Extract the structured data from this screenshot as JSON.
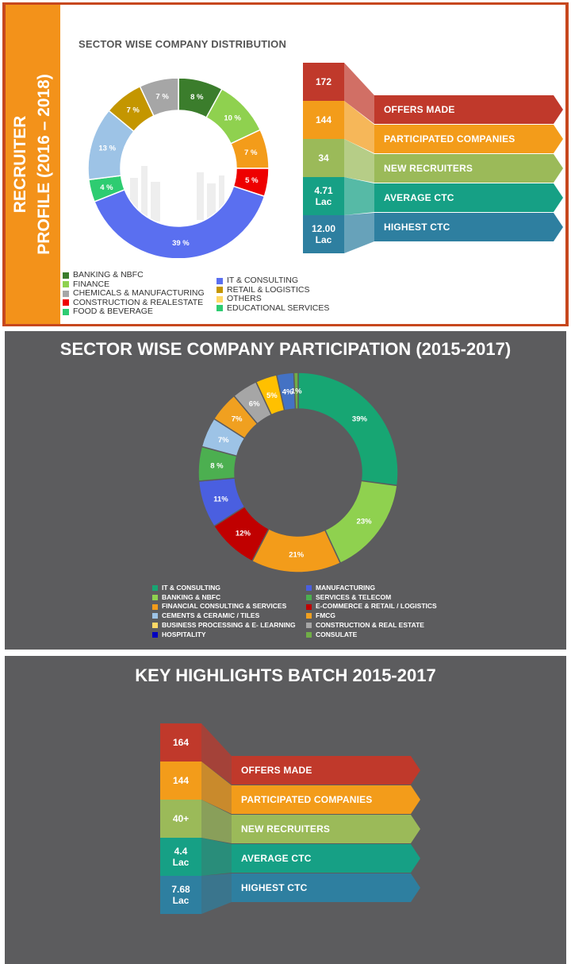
{
  "panel1": {
    "sidebar_line1": "RECRUITER",
    "sidebar_line2": "PROFILE (2016 – 2018)",
    "title": "SECTOR WISE COMPANY DISTRIBUTION",
    "stats": [
      {
        "value": "172",
        "label": "OFFERS MADE",
        "color": "#c0392b"
      },
      {
        "value": "144",
        "label": "PARTICIPATED COMPANIES",
        "color": "#f39c1a"
      },
      {
        "value": "34",
        "label": "NEW RECRUITERS",
        "color": "#9bba59"
      },
      {
        "value": "4.71 Lac",
        "label": "AVERAGE CTC",
        "color": "#16a085"
      },
      {
        "value": "12.00 Lac",
        "label": "HIGHEST CTC",
        "color": "#2e7fa0"
      }
    ]
  },
  "panel2": {
    "title": "SECTOR WISE COMPANY PARTICIPATION  (2015-2017)"
  },
  "panel3": {
    "title": "KEY HIGHLIGHTS  BATCH 2015-2017",
    "stats": [
      {
        "value": "164",
        "label": "OFFERS MADE",
        "color": "#c0392b"
      },
      {
        "value": "144",
        "label": "PARTICIPATED COMPANIES",
        "color": "#f39c1a"
      },
      {
        "value": "40+",
        "label": "NEW RECRUITERS",
        "color": "#9bba59"
      },
      {
        "value": "4.4 Lac",
        "label": "AVERAGE CTC",
        "color": "#16a085"
      },
      {
        "value": "7.68 Lac",
        "label": "HIGHEST CTC",
        "color": "#2e7fa0"
      }
    ]
  },
  "chart_data": [
    {
      "type": "pie",
      "title": "SECTOR WISE COMPANY DISTRIBUTION",
      "donut": true,
      "slices": [
        {
          "name": "BANKING & NBFC",
          "value": 8,
          "label": "8 %",
          "color": "#3b7d2c"
        },
        {
          "name": "FINANCE",
          "value": 10,
          "label": "10 %",
          "color": "#8fd14f"
        },
        {
          "name": "OTHERS",
          "value": 7,
          "label": "7 %",
          "color": "#f39c1a"
        },
        {
          "name": "CONSTRUCTION & REALESTATE",
          "value": 5,
          "label": "5 %",
          "color": "#ee0000"
        },
        {
          "name": "IT & CONSULTING",
          "value": 39,
          "label": "39 %",
          "color": "#5a6ff0"
        },
        {
          "name": "EDUCATIONAL SERVICES",
          "value": 4,
          "label": "4 %",
          "color": "#2ecc71"
        },
        {
          "name": "FOOD & BEVERAGE",
          "value": 13,
          "label": "13 %",
          "color": "#9dc3e6"
        },
        {
          "name": "RETAIL & LOGISTICS",
          "value": 7,
          "label": "7 %",
          "color": "#c49600"
        },
        {
          "name": "CHEMICALS & MANUFACTURING",
          "value": 7,
          "label": "7 %",
          "color": "#a6a6a6"
        }
      ],
      "legend_left": [
        {
          "name": "BANKING & NBFC",
          "color": "#3b7d2c"
        },
        {
          "name": "FINANCE",
          "color": "#8fd14f"
        },
        {
          "name": "CHEMICALS & MANUFACTURING",
          "color": "#a6a6a6"
        },
        {
          "name": "CONSTRUCTION & REALESTATE",
          "color": "#ee0000"
        },
        {
          "name": "FOOD & BEVERAGE",
          "color": "#2ecc71"
        }
      ],
      "legend_right": [
        {
          "name": "IT & CONSULTING",
          "color": "#5a6ff0"
        },
        {
          "name": "RETAIL & LOGISTICS",
          "color": "#c49600"
        },
        {
          "name": "OTHERS",
          "color": "#ffd966"
        },
        {
          "name": "EDUCATIONAL SERVICES",
          "color": "#2ecc71"
        }
      ],
      "legend_placement": "bottom"
    },
    {
      "type": "pie",
      "title": "SECTOR WISE COMPANY PARTICIPATION  (2015-2017)",
      "donut": true,
      "slices": [
        {
          "name": "IT & CONSULTING",
          "value": 39,
          "label": "39%",
          "color": "#17a673"
        },
        {
          "name": "BANKING & NBFC",
          "value": 23,
          "label": "23%",
          "color": "#8fd14f"
        },
        {
          "name": "FINANCIAL CONSULTING & SERVICES",
          "value": 21,
          "label": "21%",
          "color": "#f39c1a"
        },
        {
          "name": "E-COMMERCE & RETAIL / LOGISTICS",
          "value": 12,
          "label": "12%",
          "color": "#c00000"
        },
        {
          "name": "MANUFACTURING",
          "value": 11,
          "label": "11%",
          "color": "#4a5fe0"
        },
        {
          "name": "SERVICES & TELECOM",
          "value": 8,
          "label": "8 %",
          "color": "#4caf50"
        },
        {
          "name": "CEMENTS & CERAMIC / TILES",
          "value": 7,
          "label": "7%",
          "color": "#9dc3e6"
        },
        {
          "name": "FMCG",
          "value": 7,
          "label": "7%",
          "color": "#f0a020"
        },
        {
          "name": "CONSTRUCTION & REAL ESTATE",
          "value": 6,
          "label": "6%",
          "color": "#a6a6a6"
        },
        {
          "name": "BUSINESS PROCESSING & E- LEARNING",
          "value": 5,
          "label": "5%",
          "color": "#ffc000"
        },
        {
          "name": "HOSPITALITY",
          "value": 4,
          "label": "4%",
          "color": "#4472c4"
        },
        {
          "name": "CONSULATE",
          "value": 1,
          "label": "1%",
          "color": "#70ad47"
        }
      ],
      "legend_left": [
        {
          "name": "IT & CONSULTING",
          "color": "#17a673"
        },
        {
          "name": "BANKING & NBFC",
          "color": "#8fd14f"
        },
        {
          "name": "FINANCIAL CONSULTING & SERVICES",
          "color": "#f39c1a"
        },
        {
          "name": "CEMENTS & CERAMIC / TILES",
          "color": "#9dc3e6"
        },
        {
          "name": "BUSINESS PROCESSING & E- LEARNING",
          "color": "#ffd966"
        },
        {
          "name": "HOSPITALITY",
          "color": "#0000c0"
        }
      ],
      "legend_right": [
        {
          "name": "MANUFACTURING",
          "color": "#4a5fe0"
        },
        {
          "name": "SERVICES & TELECOM",
          "color": "#4caf50"
        },
        {
          "name": "E-COMMERCE & RETAIL / LOGISTICS",
          "color": "#c00000"
        },
        {
          "name": "FMCG",
          "color": "#f0a020"
        },
        {
          "name": "CONSTRUCTION & REAL ESTATE",
          "color": "#a6a6a6"
        },
        {
          "name": "CONSULATE",
          "color": "#70ad47"
        }
      ],
      "legend_placement": "bottom"
    }
  ]
}
